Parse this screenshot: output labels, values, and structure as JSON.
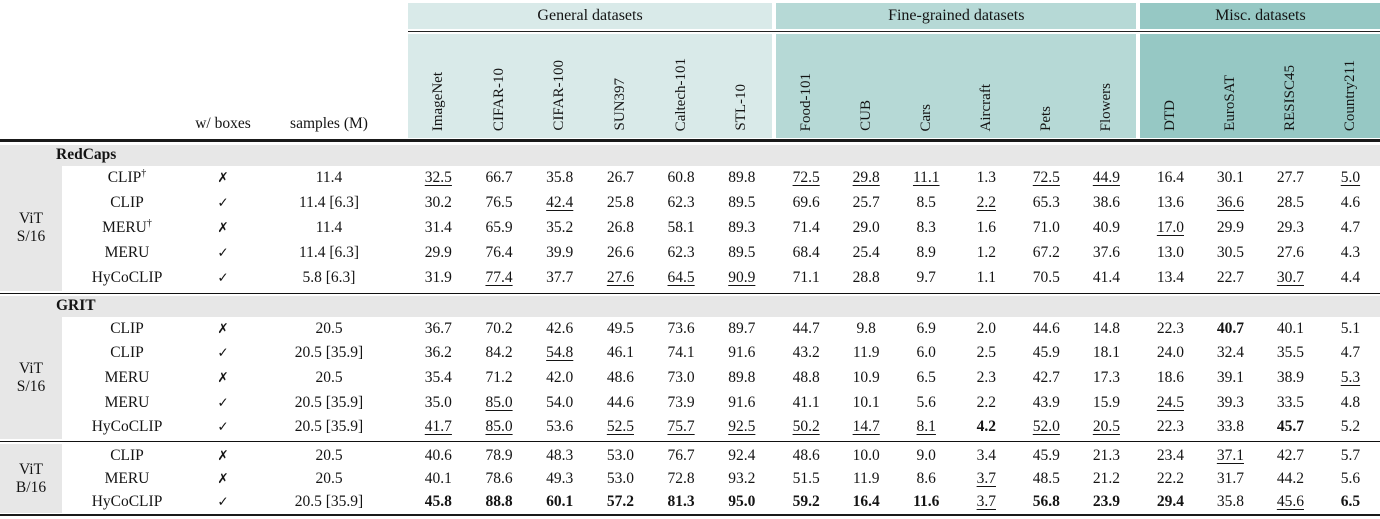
{
  "table": {
    "left_headers": {
      "w_boxes": "w/ boxes",
      "samples": "samples (M)"
    },
    "glyphs": {
      "check": "✓",
      "cross": "✗",
      "dagger": "†"
    },
    "groups": [
      {
        "label": "General datasets",
        "color": "#d9eae9",
        "columns": [
          "ImageNet",
          "CIFAR-10",
          "CIFAR-100",
          "SUN397",
          "Caltech-101",
          "STL-10"
        ]
      },
      {
        "label": "Fine-grained datasets",
        "color": "#b6d9d6",
        "columns": [
          "Food-101",
          "CUB",
          "Cars",
          "Aircraft",
          "Pets",
          "Flowers"
        ]
      },
      {
        "label": "Misc. datasets",
        "color": "#96c8c4",
        "columns": [
          "DTD",
          "EuroSAT",
          "RESISC45",
          "Country211"
        ]
      }
    ],
    "sections": [
      {
        "title": "RedCaps",
        "vit": [
          "ViT",
          "S/16"
        ],
        "rows": [
          {
            "model": "CLIP",
            "dagger": true,
            "boxes": false,
            "samples": "11.4",
            "values": [
              "_32.5",
              "66.7",
              "35.8",
              "26.7",
              "60.8",
              "89.8",
              "_72.5",
              "_29.8",
              "_11.1",
              "1.3",
              "_72.5",
              "_44.9",
              "16.4",
              "30.1",
              "27.7",
              "_5.0"
            ]
          },
          {
            "model": "CLIP",
            "dagger": false,
            "boxes": true,
            "samples": "11.4 [6.3]",
            "values": [
              "30.2",
              "76.5",
              "_42.4",
              "25.8",
              "62.3",
              "89.5",
              "69.6",
              "25.7",
              "8.5",
              "_2.2",
              "65.3",
              "38.6",
              "13.6",
              "_36.6",
              "28.5",
              "4.6"
            ]
          },
          {
            "model": "MERU",
            "dagger": true,
            "boxes": false,
            "samples": "11.4",
            "values": [
              "31.4",
              "65.9",
              "35.2",
              "26.8",
              "58.1",
              "89.3",
              "71.4",
              "29.0",
              "8.3",
              "1.6",
              "71.0",
              "40.9",
              "_17.0",
              "29.9",
              "29.3",
              "4.7"
            ]
          },
          {
            "model": "MERU",
            "dagger": false,
            "boxes": true,
            "samples": "11.4 [6.3]",
            "values": [
              "29.9",
              "76.4",
              "39.9",
              "26.6",
              "62.3",
              "89.5",
              "68.4",
              "25.4",
              "8.9",
              "1.2",
              "67.2",
              "37.6",
              "13.0",
              "30.5",
              "27.6",
              "4.3"
            ]
          },
          {
            "model": "HyCoCLIP",
            "dagger": false,
            "boxes": true,
            "samples": "5.8 [6.3]",
            "values": [
              "31.9",
              "_77.4",
              "37.7",
              "_27.6",
              "_64.5",
              "_90.9",
              "71.1",
              "28.8",
              "9.7",
              "1.1",
              "70.5",
              "41.4",
              "13.4",
              "22.7",
              "_30.7",
              "4.4"
            ]
          }
        ]
      },
      {
        "title": "GRIT",
        "vit": [
          "ViT",
          "S/16"
        ],
        "rows": [
          {
            "model": "CLIP",
            "dagger": false,
            "boxes": false,
            "samples": "20.5",
            "values": [
              "36.7",
              "70.2",
              "42.6",
              "49.5",
              "73.6",
              "89.7",
              "44.7",
              "9.8",
              "6.9",
              "2.0",
              "44.6",
              "14.8",
              "22.3",
              "*40.7",
              "40.1",
              "5.1"
            ]
          },
          {
            "model": "CLIP",
            "dagger": false,
            "boxes": true,
            "samples": "20.5 [35.9]",
            "values": [
              "36.2",
              "84.2",
              "_54.8",
              "46.1",
              "74.1",
              "91.6",
              "43.2",
              "11.9",
              "6.0",
              "2.5",
              "45.9",
              "18.1",
              "24.0",
              "32.4",
              "35.5",
              "4.7"
            ]
          },
          {
            "model": "MERU",
            "dagger": false,
            "boxes": false,
            "samples": "20.5",
            "values": [
              "35.4",
              "71.2",
              "42.0",
              "48.6",
              "73.0",
              "89.8",
              "48.8",
              "10.9",
              "6.5",
              "2.3",
              "42.7",
              "17.3",
              "18.6",
              "39.1",
              "38.9",
              "_5.3"
            ]
          },
          {
            "model": "MERU",
            "dagger": false,
            "boxes": true,
            "samples": "20.5 [35.9]",
            "values": [
              "35.0",
              "_85.0",
              "54.0",
              "44.6",
              "73.9",
              "91.6",
              "41.1",
              "10.1",
              "5.6",
              "2.2",
              "43.9",
              "15.9",
              "_24.5",
              "39.3",
              "33.5",
              "4.8"
            ]
          },
          {
            "model": "HyCoCLIP",
            "dagger": false,
            "boxes": true,
            "samples": "20.5 [35.9]",
            "values": [
              "_41.7",
              "_85.0",
              "53.6",
              "_52.5",
              "_75.7",
              "_92.5",
              "_50.2",
              "_14.7",
              "_8.1",
              "*4.2",
              "_52.0",
              "_20.5",
              "22.3",
              "33.8",
              "*45.7",
              "5.2"
            ]
          }
        ]
      },
      {
        "title": null,
        "vit": [
          "ViT",
          "B/16"
        ],
        "rows": [
          {
            "model": "CLIP",
            "dagger": false,
            "boxes": false,
            "samples": "20.5",
            "values": [
              "40.6",
              "78.9",
              "48.3",
              "53.0",
              "76.7",
              "92.4",
              "48.6",
              "10.0",
              "9.0",
              "3.4",
              "45.9",
              "21.3",
              "23.4",
              "_37.1",
              "42.7",
              "5.7"
            ]
          },
          {
            "model": "MERU",
            "dagger": false,
            "boxes": false,
            "samples": "20.5",
            "values": [
              "40.1",
              "78.6",
              "49.3",
              "53.0",
              "72.8",
              "93.2",
              "51.5",
              "11.9",
              "8.6",
              "_3.7",
              "48.5",
              "21.2",
              "22.2",
              "31.7",
              "44.2",
              "5.6"
            ]
          },
          {
            "model": "HyCoCLIP",
            "dagger": false,
            "boxes": true,
            "samples": "20.5 [35.9]",
            "values": [
              "*45.8",
              "*88.8",
              "*60.1",
              "*57.2",
              "*81.3",
              "*95.0",
              "*59.2",
              "*16.4",
              "*11.6",
              "_3.7",
              "*56.8",
              "*23.9",
              "*29.4",
              "35.8",
              "_45.6",
              "*6.5"
            ]
          }
        ]
      }
    ]
  }
}
